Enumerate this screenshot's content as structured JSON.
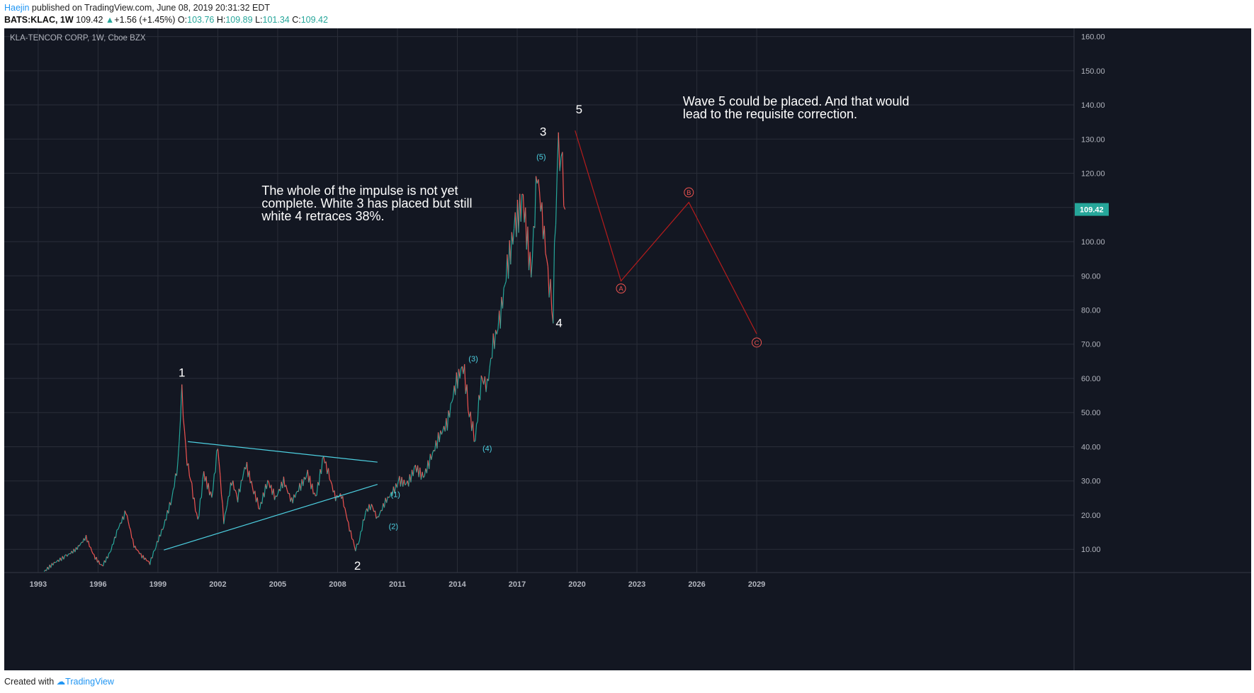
{
  "header": {
    "author": "Haejin",
    "published": "published on TradingView.com, June 08, 2019 20:31:32 EDT",
    "symbol": "BATS:KLAC, 1W",
    "last": "109.42",
    "change": "+1.56 (+1.45%)",
    "o_label": "O:",
    "o": "103.76",
    "h_label": "H:",
    "h": "109.89",
    "l_label": "L:",
    "l": "101.34",
    "c_label": "C:",
    "c": "109.42"
  },
  "footer": {
    "created_with": "Created with",
    "brand": "TradingView"
  },
  "colors": {
    "background": "#131722",
    "grid": "#2a2e39",
    "up": "#26a69a",
    "down": "#ef5350",
    "cyan": "#4dd0e1",
    "red_line": "#b71c1c",
    "text": "#b2b5be"
  },
  "chart_data": {
    "type": "line",
    "title": "KLA-TENCOR CORP, 1W, Cboe BZX",
    "xlabel": "",
    "ylabel": "",
    "xlim": [
      1991.3,
      2044.9
    ],
    "ylim": [
      3.2,
      162.4
    ],
    "x_ticks": [
      "1993",
      "1996",
      "1999",
      "2002",
      "2005",
      "2008",
      "2011",
      "2014",
      "2017",
      "2020",
      "2023",
      "2026",
      "2029"
    ],
    "y_ticks": [
      "10.00",
      "20.00",
      "30.00",
      "40.00",
      "50.00",
      "60.00",
      "70.00",
      "80.00",
      "90.00",
      "100.00",
      "110.00",
      "120.00",
      "130.00",
      "140.00",
      "150.00",
      "160.00"
    ],
    "last_price_label": "109.42",
    "last_price": 109.42,
    "grid": true,
    "series": [
      {
        "x": [
          1993.3,
          1993.8,
          1994.4,
          1994.9,
          1995.4,
          1995.8,
          1996.2,
          1996.6,
          1997.0,
          1997.4,
          1997.8,
          1998.2,
          1998.6,
          1998.9,
          1999.3,
          1999.7,
          2000.0,
          2000.2,
          2000.4,
          2000.7,
          2001.0,
          2001.3,
          2001.7,
          2002.0,
          2002.3,
          2002.7,
          2003.0,
          2003.4,
          2003.8,
          2004.1,
          2004.5,
          2004.9,
          2005.3,
          2005.7,
          2006.1,
          2006.5,
          2006.9,
          2007.3,
          2007.6,
          2007.9,
          2008.2,
          2008.6,
          2008.9,
          2009.1,
          2009.4,
          2009.7,
          2010.0,
          2010.4,
          2010.8,
          2011.1,
          2011.5,
          2011.9,
          2012.3,
          2012.7,
          2013.1,
          2013.5,
          2013.9,
          2014.3,
          2014.6,
          2014.9,
          2015.2,
          2015.5,
          2015.8,
          2016.1,
          2016.5,
          2016.9,
          2017.3,
          2017.7,
          2018.0,
          2018.3,
          2018.6,
          2018.8,
          2019.0,
          2019.2,
          2019.4
        ],
        "y": [
          3.5,
          6.0,
          8.0,
          10.0,
          13.5,
          8.0,
          5.0,
          9.0,
          16.0,
          21.0,
          11.0,
          8.0,
          6.0,
          11.0,
          17.0,
          25.0,
          35.0,
          56.0,
          38.0,
          28.0,
          18.0,
          32.0,
          25.0,
          40.0,
          18.0,
          30.0,
          25.0,
          35.0,
          27.0,
          22.0,
          30.0,
          25.0,
          30.0,
          24.0,
          28.0,
          32.0,
          25.0,
          37.0,
          31.0,
          25.0,
          26.0,
          16.0,
          10.0,
          13.0,
          21.0,
          23.0,
          19.0,
          24.0,
          27.0,
          30.0,
          29.0,
          34.0,
          31.0,
          37.0,
          43.0,
          47.0,
          58.0,
          64.0,
          50.0,
          42.0,
          60.0,
          58.0,
          70.0,
          76.0,
          92.0,
          105.0,
          112.0,
          90.0,
          120.0,
          105.0,
          88.0,
          80.0,
          125.0,
          128.0,
          109.42
        ]
      }
    ],
    "wave_labels": [
      {
        "text": "1",
        "x": 2000.2,
        "y": 60.5
      },
      {
        "text": "2",
        "x": 2009.0,
        "y": 4.0
      },
      {
        "text": "3",
        "x": 2018.3,
        "y": 131.0
      },
      {
        "text": "4",
        "x": 2019.1,
        "y": 75.0
      },
      {
        "text": "5",
        "x": 2020.1,
        "y": 137.5
      }
    ],
    "subwave_labels": [
      {
        "text": "(1)",
        "x": 2010.9,
        "y": 25.3
      },
      {
        "text": "(2)",
        "x": 2010.8,
        "y": 16.0
      },
      {
        "text": "(3)",
        "x": 2014.8,
        "y": 65.0
      },
      {
        "text": "(4)",
        "x": 2015.5,
        "y": 38.7
      },
      {
        "text": "(5)",
        "x": 2018.2,
        "y": 124.0
      }
    ],
    "triangle_lines": [
      {
        "x": [
          2000.5,
          2010.0
        ],
        "y": [
          41.5,
          35.5
        ]
      },
      {
        "x": [
          1999.3,
          2010.0
        ],
        "y": [
          9.8,
          29.0
        ]
      }
    ],
    "projection_path": {
      "x": [
        2019.9,
        2022.2,
        2025.6,
        2029.0
      ],
      "y": [
        132.5,
        88.5,
        111.5,
        73.0
      ]
    },
    "projection_points": [
      {
        "text": "A",
        "x": 2022.2,
        "y": 86.3
      },
      {
        "text": "B",
        "x": 2025.6,
        "y": 114.4
      },
      {
        "text": "C",
        "x": 2029.0,
        "y": 70.5
      }
    ],
    "annotations": [
      {
        "lines": [
          "The whole of the impulse is not yet",
          "complete. White 3 has placed but still",
          "white 4 retraces 38%."
        ],
        "x": 2004.2,
        "y": 113.7
      },
      {
        "lines": [
          "Wave 5 could be placed. And that would",
          "lead to the requisite correction."
        ],
        "x": 2025.3,
        "y": 139.8
      }
    ]
  }
}
